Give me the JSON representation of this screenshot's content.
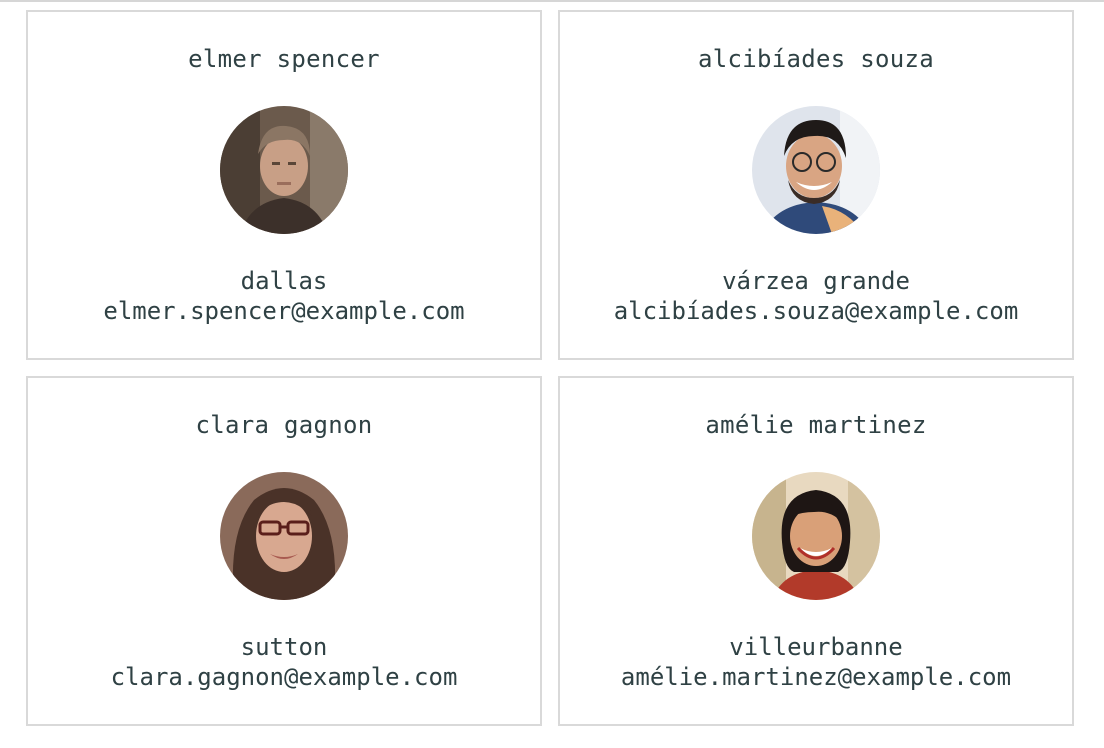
{
  "users": [
    {
      "name": "elmer spencer",
      "city": "dallas",
      "email": "elmer.spencer@example.com",
      "avatar_icon": "avatar-photo-elmer-spencer"
    },
    {
      "name": "alcibíades souza",
      "city": "várzea grande",
      "email": "alcibíades.souza@example.com",
      "avatar_icon": "avatar-photo-alcibiades-souza"
    },
    {
      "name": "clara gagnon",
      "city": "sutton",
      "email": "clara.gagnon@example.com",
      "avatar_icon": "avatar-photo-clara-gagnon"
    },
    {
      "name": "amélie martinez",
      "city": "villeurbanne",
      "email": "amélie.martinez@example.com",
      "avatar_icon": "avatar-photo-amelie-martinez"
    }
  ],
  "colors": {
    "text": "#2f4144",
    "card_border": "#d9d9d9",
    "background": "#ffffff"
  }
}
